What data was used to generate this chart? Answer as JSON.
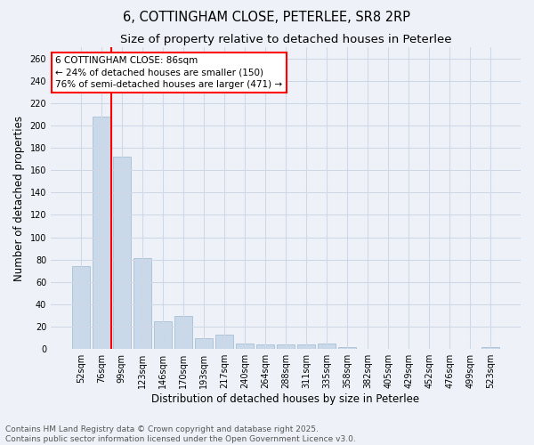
{
  "title": "6, COTTINGHAM CLOSE, PETERLEE, SR8 2RP",
  "subtitle": "Size of property relative to detached houses in Peterlee",
  "xlabel": "Distribution of detached houses by size in Peterlee",
  "ylabel": "Number of detached properties",
  "categories": [
    "52sqm",
    "76sqm",
    "99sqm",
    "123sqm",
    "146sqm",
    "170sqm",
    "193sqm",
    "217sqm",
    "240sqm",
    "264sqm",
    "288sqm",
    "311sqm",
    "335sqm",
    "358sqm",
    "382sqm",
    "405sqm",
    "429sqm",
    "452sqm",
    "476sqm",
    "499sqm",
    "523sqm"
  ],
  "values": [
    74,
    208,
    172,
    81,
    25,
    30,
    10,
    13,
    5,
    4,
    4,
    4,
    5,
    2,
    0,
    0,
    0,
    0,
    0,
    0,
    2
  ],
  "bar_color": "#c9d9ea",
  "bar_edge_color": "#a0b8d0",
  "grid_color": "#d0d8e8",
  "bg_color": "#eef2f8",
  "vline_color": "red",
  "annotation_text": "6 COTTINGHAM CLOSE: 86sqm\n← 24% of detached houses are smaller (150)\n76% of semi-detached houses are larger (471) →",
  "annotation_box_color": "white",
  "annotation_box_edge": "red",
  "ylim": [
    0,
    270
  ],
  "yticks": [
    0,
    20,
    40,
    60,
    80,
    100,
    120,
    140,
    160,
    180,
    200,
    220,
    240,
    260
  ],
  "footer1": "Contains HM Land Registry data © Crown copyright and database right 2025.",
  "footer2": "Contains public sector information licensed under the Open Government Licence v3.0.",
  "title_fontsize": 10.5,
  "subtitle_fontsize": 9.5,
  "axis_label_fontsize": 8.5,
  "tick_fontsize": 7,
  "annotation_fontsize": 7.5,
  "footer_fontsize": 6.5
}
